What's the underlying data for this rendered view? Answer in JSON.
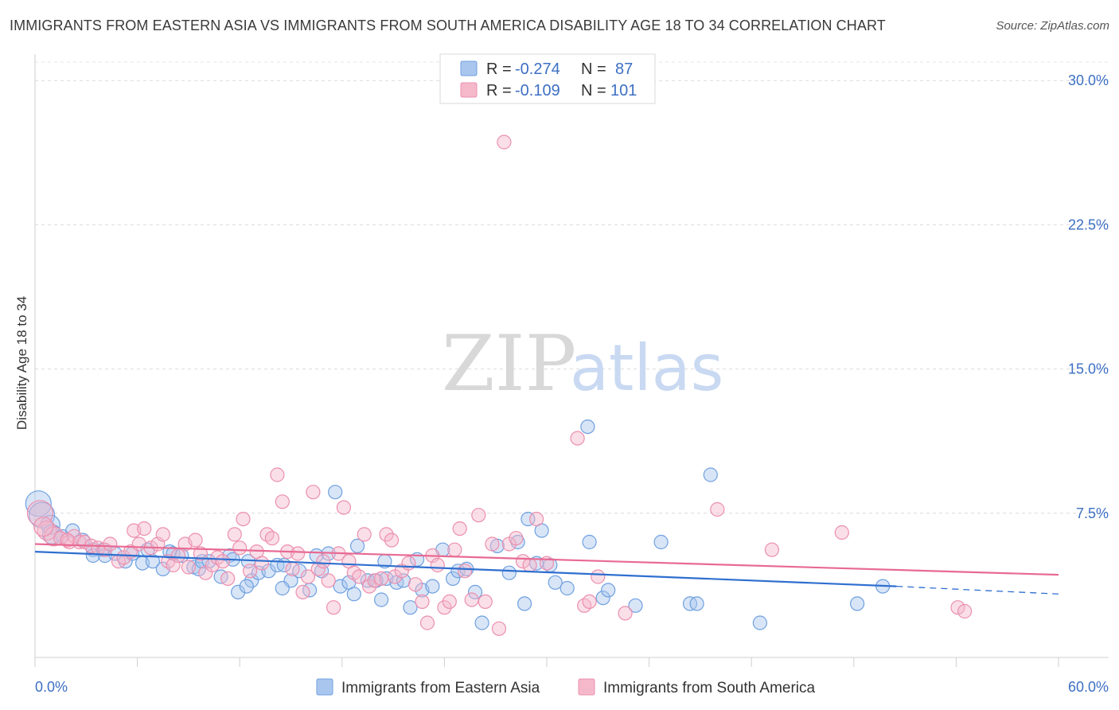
{
  "title": "IMMIGRANTS FROM EASTERN ASIA VS IMMIGRANTS FROM SOUTH AMERICA DISABILITY AGE 18 TO 34 CORRELATION CHART",
  "source": "Source: ZipAtlas.com",
  "watermark": {
    "zip": "ZIP",
    "atlas": "atlas"
  },
  "legend": {
    "rows": [
      {
        "r_label": "R =",
        "r_value": "-0.274",
        "n_label": "N =",
        "n_value": "87",
        "color": "#a9c6ee"
      },
      {
        "r_label": "R =",
        "r_value": "-0.109",
        "n_label": "N =",
        "n_value": "101",
        "color": "#f5b8cb"
      }
    ]
  },
  "chart_data": {
    "type": "scatter",
    "title": "IMMIGRANTS FROM EASTERN ASIA VS IMMIGRANTS FROM SOUTH AMERICA DISABILITY AGE 18 TO 34 CORRELATION CHART",
    "xlabel": "",
    "ylabel": "Disability Age 18 to 34",
    "xlim": [
      0,
      60
    ],
    "ylim": [
      0,
      31.5
    ],
    "x_tick_labels": [
      "0.0%",
      "60.0%"
    ],
    "y_ticks": [
      7.5,
      15,
      22.5,
      30
    ],
    "y_tick_labels": [
      "7.5%",
      "15.0%",
      "22.5%",
      "30.0%"
    ],
    "grid": true,
    "legend_position": "top-center",
    "series": [
      {
        "name": "Immigrants from Eastern Asia",
        "color": "#6fa0e0",
        "fill": "#a9c6ee",
        "trend": {
          "x": [
            0,
            50.5
          ],
          "y": [
            5.5,
            3.7
          ],
          "dashed_to": [
            60,
            3.3
          ],
          "color": "#2f6fcf"
        },
        "points": [
          [
            0.2,
            8.0
          ],
          [
            0.4,
            7.4
          ],
          [
            0.9,
            6.9
          ],
          [
            1.0,
            6.4
          ],
          [
            1.6,
            6.3
          ],
          [
            2.2,
            6.6
          ],
          [
            2.8,
            6.1
          ],
          [
            3.4,
            5.6
          ],
          [
            3.4,
            5.3
          ],
          [
            4.0,
            5.6
          ],
          [
            4.1,
            5.3
          ],
          [
            4.7,
            5.4
          ],
          [
            5.3,
            5.0
          ],
          [
            5.7,
            5.4
          ],
          [
            6.3,
            4.9
          ],
          [
            6.6,
            5.6
          ],
          [
            6.9,
            5.0
          ],
          [
            7.5,
            4.6
          ],
          [
            7.9,
            5.5
          ],
          [
            8.1,
            5.4
          ],
          [
            8.6,
            5.3
          ],
          [
            9.3,
            4.7
          ],
          [
            9.6,
            4.6
          ],
          [
            9.8,
            5.0
          ],
          [
            10.2,
            5.0
          ],
          [
            10.9,
            4.2
          ],
          [
            11.4,
            5.3
          ],
          [
            11.6,
            5.1
          ],
          [
            11.9,
            3.4
          ],
          [
            12.5,
            5.0
          ],
          [
            12.7,
            4.0
          ],
          [
            13.1,
            4.4
          ],
          [
            13.7,
            4.5
          ],
          [
            14.2,
            4.8
          ],
          [
            14.6,
            4.8
          ],
          [
            15.0,
            4.0
          ],
          [
            15.5,
            4.5
          ],
          [
            16.1,
            3.5
          ],
          [
            16.5,
            5.3
          ],
          [
            16.8,
            4.5
          ],
          [
            17.2,
            5.4
          ],
          [
            17.6,
            8.6
          ],
          [
            17.9,
            3.7
          ],
          [
            18.4,
            3.9
          ],
          [
            18.7,
            3.3
          ],
          [
            18.9,
            5.8
          ],
          [
            19.5,
            4.0
          ],
          [
            20.0,
            4.0
          ],
          [
            20.3,
            3.0
          ],
          [
            20.6,
            4.1
          ],
          [
            21.2,
            3.9
          ],
          [
            21.6,
            4.0
          ],
          [
            22.0,
            2.6
          ],
          [
            22.4,
            5.1
          ],
          [
            22.7,
            3.5
          ],
          [
            23.3,
            3.7
          ],
          [
            23.9,
            5.6
          ],
          [
            24.5,
            4.1
          ],
          [
            24.8,
            4.5
          ],
          [
            25.3,
            4.6
          ],
          [
            25.8,
            3.4
          ],
          [
            26.2,
            1.8
          ],
          [
            27.1,
            5.8
          ],
          [
            27.8,
            4.4
          ],
          [
            28.3,
            6.0
          ],
          [
            28.7,
            2.8
          ],
          [
            28.9,
            7.2
          ],
          [
            29.4,
            4.9
          ],
          [
            29.7,
            6.6
          ],
          [
            30.2,
            4.8
          ],
          [
            30.5,
            3.9
          ],
          [
            31.2,
            3.6
          ],
          [
            32.4,
            12.0
          ],
          [
            32.5,
            6.0
          ],
          [
            33.3,
            3.1
          ],
          [
            33.6,
            3.5
          ],
          [
            35.2,
            2.7
          ],
          [
            36.7,
            6.0
          ],
          [
            38.4,
            2.8
          ],
          [
            38.8,
            2.8
          ],
          [
            39.6,
            9.5
          ],
          [
            42.5,
            1.8
          ],
          [
            48.2,
            2.8
          ],
          [
            49.7,
            3.7
          ],
          [
            12.4,
            3.7
          ],
          [
            14.5,
            3.6
          ],
          [
            20.5,
            5.0
          ]
        ]
      },
      {
        "name": "Immigrants from South America",
        "color": "#ec8fae",
        "fill": "#f5b8cb",
        "trend": {
          "x": [
            0,
            60
          ],
          "y": [
            5.9,
            4.3
          ],
          "color": "#e86a93"
        },
        "points": [
          [
            0.3,
            7.5
          ],
          [
            0.7,
            6.6
          ],
          [
            1.1,
            6.3
          ],
          [
            1.5,
            6.2
          ],
          [
            2.0,
            6.0
          ],
          [
            2.3,
            6.3
          ],
          [
            2.6,
            6.0
          ],
          [
            2.9,
            6.0
          ],
          [
            3.3,
            5.8
          ],
          [
            3.7,
            5.7
          ],
          [
            4.1,
            5.6
          ],
          [
            4.4,
            5.9
          ],
          [
            4.9,
            5.0
          ],
          [
            5.2,
            5.2
          ],
          [
            5.6,
            5.5
          ],
          [
            5.8,
            6.6
          ],
          [
            6.1,
            5.9
          ],
          [
            6.4,
            6.7
          ],
          [
            6.8,
            5.7
          ],
          [
            7.2,
            5.9
          ],
          [
            7.5,
            6.4
          ],
          [
            7.8,
            5.0
          ],
          [
            8.1,
            4.8
          ],
          [
            8.4,
            5.3
          ],
          [
            8.8,
            5.9
          ],
          [
            9.0,
            4.7
          ],
          [
            9.4,
            6.1
          ],
          [
            9.7,
            5.4
          ],
          [
            10.0,
            4.4
          ],
          [
            10.4,
            4.8
          ],
          [
            10.7,
            5.2
          ],
          [
            11.0,
            5.0
          ],
          [
            11.3,
            4.1
          ],
          [
            11.7,
            6.4
          ],
          [
            12.0,
            5.7
          ],
          [
            12.2,
            7.2
          ],
          [
            12.6,
            4.5
          ],
          [
            13.0,
            5.5
          ],
          [
            13.3,
            4.9
          ],
          [
            13.6,
            6.4
          ],
          [
            13.9,
            6.2
          ],
          [
            14.2,
            9.5
          ],
          [
            14.5,
            8.1
          ],
          [
            14.8,
            5.5
          ],
          [
            15.1,
            4.6
          ],
          [
            15.4,
            5.4
          ],
          [
            15.7,
            3.4
          ],
          [
            16.0,
            4.2
          ],
          [
            16.3,
            8.6
          ],
          [
            16.6,
            4.6
          ],
          [
            16.9,
            5.0
          ],
          [
            17.2,
            4.0
          ],
          [
            17.5,
            2.6
          ],
          [
            17.8,
            5.4
          ],
          [
            18.1,
            7.8
          ],
          [
            18.4,
            5.0
          ],
          [
            18.7,
            4.4
          ],
          [
            19.0,
            4.2
          ],
          [
            19.3,
            6.4
          ],
          [
            19.6,
            3.7
          ],
          [
            19.9,
            4.0
          ],
          [
            20.3,
            4.1
          ],
          [
            20.6,
            6.4
          ],
          [
            20.9,
            6.1
          ],
          [
            21.1,
            4.2
          ],
          [
            21.5,
            4.5
          ],
          [
            21.9,
            4.9
          ],
          [
            22.3,
            3.8
          ],
          [
            22.7,
            2.9
          ],
          [
            23.0,
            1.8
          ],
          [
            23.3,
            5.3
          ],
          [
            23.6,
            4.8
          ],
          [
            24.0,
            2.6
          ],
          [
            24.3,
            2.9
          ],
          [
            24.6,
            5.6
          ],
          [
            24.9,
            6.7
          ],
          [
            25.2,
            4.5
          ],
          [
            25.6,
            3.0
          ],
          [
            26.0,
            7.4
          ],
          [
            26.4,
            2.9
          ],
          [
            26.8,
            5.9
          ],
          [
            27.2,
            1.5
          ],
          [
            27.5,
            26.8
          ],
          [
            27.8,
            5.9
          ],
          [
            28.2,
            6.2
          ],
          [
            28.6,
            5.0
          ],
          [
            29.0,
            4.8
          ],
          [
            29.4,
            7.2
          ],
          [
            30.0,
            4.9
          ],
          [
            31.8,
            11.4
          ],
          [
            32.2,
            2.7
          ],
          [
            32.5,
            2.9
          ],
          [
            33.0,
            4.2
          ],
          [
            34.6,
            2.3
          ],
          [
            40.0,
            7.7
          ],
          [
            43.2,
            5.6
          ],
          [
            47.3,
            6.5
          ],
          [
            54.1,
            2.6
          ],
          [
            54.5,
            2.4
          ],
          [
            0.5,
            6.8
          ],
          [
            1.9,
            6.1
          ]
        ]
      }
    ]
  },
  "bottom_legend": [
    {
      "label": "Immigrants from Eastern Asia",
      "color": "#a9c6ee",
      "border": "#6fa0e0"
    },
    {
      "label": "Immigrants from South America",
      "color": "#f5b8cb",
      "border": "#ec8fae"
    }
  ]
}
